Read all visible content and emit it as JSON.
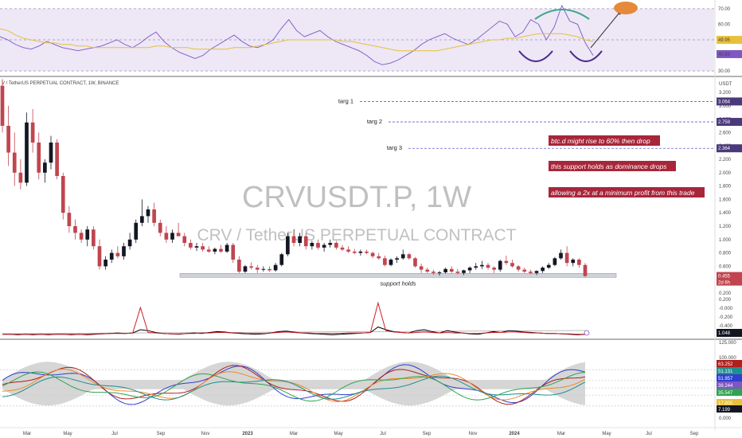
{
  "header": {
    "symbol_line": "V / TetherUS PERPETUAL CONTRACT, 1W, BINANCE",
    "currency": "USDT"
  },
  "watermark": {
    "title": "CRVUSDT.P, 1W",
    "subtitle": "CRV / TetherUS PERPETUAL CONTRACT"
  },
  "annotations": {
    "targets": [
      {
        "label": "targ 1",
        "price": 3.064,
        "tag": "3.064"
      },
      {
        "label": "targ 2",
        "price": 2.759,
        "tag": "2.759"
      },
      {
        "label": "targ 3",
        "price": 2.364,
        "tag": "2.364"
      }
    ],
    "notes": [
      "btc.d might rise to 60% then drop",
      "this support holds as dominance drops",
      "allowing a 2x at a minimum profit from this trade"
    ],
    "support_label": "support holds",
    "current_price": "0.455",
    "countdown": "2d 6h"
  },
  "colors": {
    "up": "#131722",
    "down": "#c0454f",
    "rsi_line": "#7e57c2",
    "rsi_ma": "#e8c13a",
    "rsi_band": "#ede7f6",
    "note_bg": "#a8263a",
    "target_line": "#6a5acd",
    "arc_green": "#3fa58a",
    "arc_purple": "#4a2a8a",
    "orange_blob": "#e6893a",
    "osc_red": "#cc1f28",
    "osc_black": "#000000",
    "gray_cloud": "#c8c8c8",
    "blue": "#2f3fd0",
    "teal": "#1f8f8f",
    "green": "#2da44e",
    "orange": "#f08a24",
    "dark_red": "#b01e1e"
  },
  "axes": {
    "rsi_ticks": [
      "70.00",
      "60.00",
      "50.00",
      "40.00",
      "30.00"
    ],
    "rsi_tags": [
      {
        "text": "49.95"
      },
      {
        "text": "40.83"
      }
    ],
    "price_ticks": [
      "3.200",
      "3.000",
      "2.800",
      "2.600",
      "2.400",
      "2.200",
      "2.000",
      "1.800",
      "1.600",
      "1.400",
      "1.200",
      "1.000",
      "0.800",
      "0.600",
      "0.400",
      "0.200"
    ],
    "osc_ticks": [
      "0.200",
      "-0.000",
      "-0.200",
      "-0.400"
    ],
    "osc_tag": "1.048",
    "bottom_ticks": [
      "125.000",
      "100.000",
      "75.000",
      "50.000",
      "25.000",
      "0.000"
    ],
    "bottom_tags": [
      "63.252",
      "51.131",
      "51.957",
      "38.244",
      "35.547",
      "17.800",
      "7.199"
    ],
    "time_labels": [
      "Mar",
      "May",
      "Jul",
      "Sep",
      "Nov",
      "2023",
      "Mar",
      "May",
      "Jul",
      "Sep",
      "Nov",
      "2024",
      "Mar",
      "May",
      "Jul",
      "Sep"
    ]
  },
  "chart_data": [
    {
      "type": "candlestick",
      "title": "CRVUSDT.P, 1W",
      "ylabel": "USDT",
      "ylim": [
        0.2,
        3.2
      ],
      "x_axis": "weekly, Feb 2022 to Apr 2024",
      "series": [
        {
          "name": "CRVUSDT.P",
          "ohlc": [
            [
              3.3,
              3.4,
              2.6,
              2.7
            ],
            [
              2.7,
              3.0,
              2.1,
              2.3
            ],
            [
              2.3,
              2.6,
              1.8,
              2.0
            ],
            [
              2.0,
              2.2,
              1.75,
              1.85
            ],
            [
              1.85,
              2.9,
              1.8,
              2.75
            ],
            [
              2.75,
              2.95,
              2.3,
              2.45
            ],
            [
              2.45,
              2.6,
              1.9,
              2.0
            ],
            [
              2.0,
              2.2,
              1.85,
              2.15
            ],
            [
              2.15,
              2.55,
              2.05,
              2.45
            ],
            [
              2.45,
              2.5,
              1.9,
              1.95
            ],
            [
              1.95,
              2.0,
              1.3,
              1.4
            ],
            [
              1.4,
              1.5,
              1.1,
              1.2
            ],
            [
              1.2,
              1.3,
              1.0,
              1.1
            ],
            [
              1.1,
              1.15,
              0.95,
              1.0
            ],
            [
              1.0,
              1.2,
              0.9,
              1.15
            ],
            [
              1.15,
              1.2,
              0.85,
              0.9
            ],
            [
              0.9,
              1.0,
              0.55,
              0.6
            ],
            [
              0.6,
              0.75,
              0.55,
              0.7
            ],
            [
              0.7,
              0.85,
              0.65,
              0.8
            ],
            [
              0.8,
              0.9,
              0.72,
              0.75
            ],
            [
              0.75,
              0.95,
              0.7,
              0.9
            ],
            [
              0.9,
              1.1,
              0.85,
              1.0
            ],
            [
              1.0,
              1.3,
              0.95,
              1.25
            ],
            [
              1.25,
              1.6,
              1.2,
              1.35
            ],
            [
              1.35,
              1.5,
              1.25,
              1.45
            ],
            [
              1.45,
              1.55,
              1.2,
              1.25
            ],
            [
              1.25,
              1.3,
              1.05,
              1.1
            ],
            [
              1.1,
              1.2,
              0.95,
              1.0
            ],
            [
              1.0,
              1.15,
              0.95,
              1.1
            ],
            [
              1.1,
              1.25,
              1.05,
              1.05
            ],
            [
              1.05,
              1.1,
              0.9,
              0.95
            ],
            [
              0.95,
              1.0,
              0.85,
              0.88
            ],
            [
              0.88,
              0.95,
              0.83,
              0.9
            ],
            [
              0.9,
              0.95,
              0.82,
              0.85
            ],
            [
              0.85,
              0.9,
              0.8,
              0.82
            ],
            [
              0.82,
              0.88,
              0.78,
              0.86
            ],
            [
              0.86,
              0.92,
              0.8,
              0.82
            ],
            [
              0.82,
              0.95,
              0.8,
              0.92
            ],
            [
              0.92,
              0.95,
              0.65,
              0.7
            ],
            [
              0.7,
              0.75,
              0.5,
              0.52
            ],
            [
              0.52,
              0.62,
              0.5,
              0.6
            ],
            [
              0.6,
              0.66,
              0.55,
              0.58
            ],
            [
              0.58,
              0.62,
              0.5,
              0.55
            ],
            [
              0.55,
              0.6,
              0.52,
              0.56
            ],
            [
              0.56,
              0.6,
              0.52,
              0.54
            ],
            [
              0.54,
              0.65,
              0.52,
              0.62
            ],
            [
              0.62,
              0.8,
              0.6,
              0.78
            ],
            [
              0.78,
              1.1,
              0.75,
              1.05
            ],
            [
              1.05,
              1.15,
              0.9,
              0.95
            ],
            [
              0.95,
              1.1,
              0.9,
              1.05
            ],
            [
              1.05,
              1.1,
              0.85,
              0.9
            ],
            [
              0.9,
              0.98,
              0.85,
              0.95
            ],
            [
              0.95,
              1.0,
              0.85,
              0.88
            ],
            [
              0.88,
              0.95,
              0.82,
              0.92
            ],
            [
              0.92,
              1.0,
              0.88,
              0.95
            ],
            [
              0.95,
              0.98,
              0.85,
              0.88
            ],
            [
              0.88,
              0.92,
              0.83,
              0.85
            ],
            [
              0.85,
              0.9,
              0.8,
              0.82
            ],
            [
              0.82,
              0.86,
              0.78,
              0.8
            ],
            [
              0.8,
              0.85,
              0.76,
              0.82
            ],
            [
              0.82,
              0.85,
              0.78,
              0.8
            ],
            [
              0.8,
              0.82,
              0.72,
              0.75
            ],
            [
              0.75,
              0.8,
              0.7,
              0.72
            ],
            [
              0.72,
              0.76,
              0.6,
              0.62
            ],
            [
              0.62,
              0.72,
              0.6,
              0.7
            ],
            [
              0.7,
              0.75,
              0.65,
              0.72
            ],
            [
              0.72,
              0.85,
              0.7,
              0.78
            ],
            [
              0.78,
              0.8,
              0.7,
              0.72
            ],
            [
              0.72,
              0.74,
              0.58,
              0.6
            ],
            [
              0.6,
              0.64,
              0.5,
              0.55
            ],
            [
              0.55,
              0.58,
              0.5,
              0.52
            ],
            [
              0.52,
              0.55,
              0.47,
              0.5
            ],
            [
              0.5,
              0.53,
              0.46,
              0.51
            ],
            [
              0.51,
              0.58,
              0.49,
              0.56
            ],
            [
              0.56,
              0.6,
              0.5,
              0.52
            ],
            [
              0.52,
              0.56,
              0.48,
              0.5
            ],
            [
              0.5,
              0.55,
              0.47,
              0.54
            ],
            [
              0.54,
              0.6,
              0.5,
              0.58
            ],
            [
              0.58,
              0.65,
              0.55,
              0.6
            ],
            [
              0.6,
              0.68,
              0.56,
              0.62
            ],
            [
              0.62,
              0.65,
              0.55,
              0.58
            ],
            [
              0.58,
              0.6,
              0.5,
              0.55
            ],
            [
              0.55,
              0.7,
              0.52,
              0.68
            ],
            [
              0.68,
              0.76,
              0.62,
              0.65
            ],
            [
              0.65,
              0.7,
              0.58,
              0.6
            ],
            [
              0.6,
              0.62,
              0.52,
              0.55
            ],
            [
              0.55,
              0.58,
              0.5,
              0.52
            ],
            [
              0.52,
              0.55,
              0.48,
              0.5
            ],
            [
              0.5,
              0.54,
              0.47,
              0.53
            ],
            [
              0.53,
              0.6,
              0.5,
              0.58
            ],
            [
              0.58,
              0.65,
              0.56,
              0.62
            ],
            [
              0.62,
              0.74,
              0.6,
              0.72
            ],
            [
              0.72,
              0.85,
              0.7,
              0.8
            ],
            [
              0.8,
              0.9,
              0.6,
              0.65
            ],
            [
              0.65,
              0.72,
              0.6,
              0.7
            ],
            [
              0.7,
              0.72,
              0.58,
              0.62
            ],
            [
              0.62,
              0.65,
              0.44,
              0.455
            ]
          ]
        }
      ]
    },
    {
      "type": "line",
      "title": "RSI",
      "ylim": [
        27,
        73
      ],
      "series": [
        {
          "values": [
            52,
            50,
            47,
            45,
            44,
            46,
            49,
            47,
            45,
            44,
            43,
            44,
            45,
            46,
            48,
            50,
            47,
            45,
            48,
            52,
            55,
            49,
            45,
            42,
            40,
            38,
            40,
            44,
            47,
            50,
            53,
            49,
            46,
            45,
            47,
            50,
            57,
            63,
            56,
            52,
            54,
            56,
            52,
            49,
            47,
            45,
            43,
            40,
            36,
            34,
            35,
            37,
            40,
            43,
            47,
            50,
            52,
            54,
            51,
            49,
            47,
            50,
            54,
            58,
            62,
            60,
            52,
            55,
            63,
            60,
            50,
            58,
            72,
            62,
            60,
            48,
            40
          ]
        },
        {
          "values": [
            57,
            56,
            53,
            51,
            50,
            49,
            48,
            48,
            47,
            47,
            46,
            46,
            45,
            45,
            45,
            45,
            45,
            45,
            45,
            45,
            46,
            46,
            45,
            45,
            45,
            44,
            44,
            44,
            44,
            44,
            45,
            45,
            45,
            46,
            47,
            48,
            49,
            50,
            50,
            50,
            50,
            50,
            50,
            50,
            49,
            49,
            48,
            47,
            46,
            45,
            44,
            43,
            43,
            43,
            43,
            43,
            43,
            44,
            45,
            46,
            47,
            48,
            49,
            50,
            50,
            51,
            51,
            52,
            53,
            54,
            54,
            54,
            54,
            53,
            52,
            50,
            49
          ]
        }
      ]
    },
    {
      "type": "line",
      "title": "oscillator",
      "series": [
        {
          "values": [
            0.02,
            0.02,
            0.01,
            0.02,
            0.01,
            0.02,
            0.01,
            0.02,
            0.02,
            0.01,
            0.02,
            0.01,
            0.02,
            0.03,
            0.04,
            0.05,
            0.04,
            0.05,
            0.12,
            0.1,
            0.06,
            0.04,
            0.03,
            0.02,
            0.04,
            0.05,
            0.04,
            0.06,
            0.08,
            0.07,
            0.05,
            0.04,
            0.03,
            0.02,
            0.03,
            0.05,
            0.08,
            0.09,
            0.07,
            0.05,
            0.04,
            0.03,
            0.02,
            0.01,
            0.02,
            0.03,
            0.04,
            0.05,
            0.06,
            0.18,
            0.12,
            0.08,
            0.06,
            0.05,
            0.1,
            0.12,
            0.08,
            0.05,
            0.1,
            0.07,
            0.05,
            0.03,
            0.02,
            0.05,
            0.08,
            0.06,
            0.1,
            0.09,
            0.07,
            0.06,
            0.05,
            0.04,
            0.04,
            0.03,
            0.02,
            0.01,
            0.02
          ]
        },
        {
          "values": [
            0.02,
            0.02,
            0.02,
            0.02,
            0.02,
            0.02,
            0.02,
            0.02,
            0.02,
            0.02,
            0.02,
            0.02,
            0.03,
            0.03,
            0.04,
            0.04,
            0.04,
            0.05,
            0.6,
            0.06,
            0.05,
            0.04,
            0.03,
            0.03,
            0.04,
            0.04,
            0.05,
            0.05,
            0.06,
            0.06,
            0.05,
            0.05,
            0.04,
            0.04,
            0.04,
            0.05,
            0.06,
            0.07,
            0.06,
            0.05,
            0.05,
            0.04,
            0.04,
            0.04,
            0.04,
            0.05,
            0.05,
            0.05,
            0.06,
            0.7,
            0.1,
            0.07,
            0.06,
            0.05,
            0.06,
            0.07,
            0.06,
            0.05,
            0.06,
            0.05,
            0.05,
            0.04,
            0.04,
            0.05,
            0.06,
            0.06,
            0.07,
            0.07,
            0.06,
            0.05,
            0.05,
            0.04,
            0.04,
            0.03,
            0.03,
            0.02,
            0.02
          ]
        }
      ]
    }
  ]
}
